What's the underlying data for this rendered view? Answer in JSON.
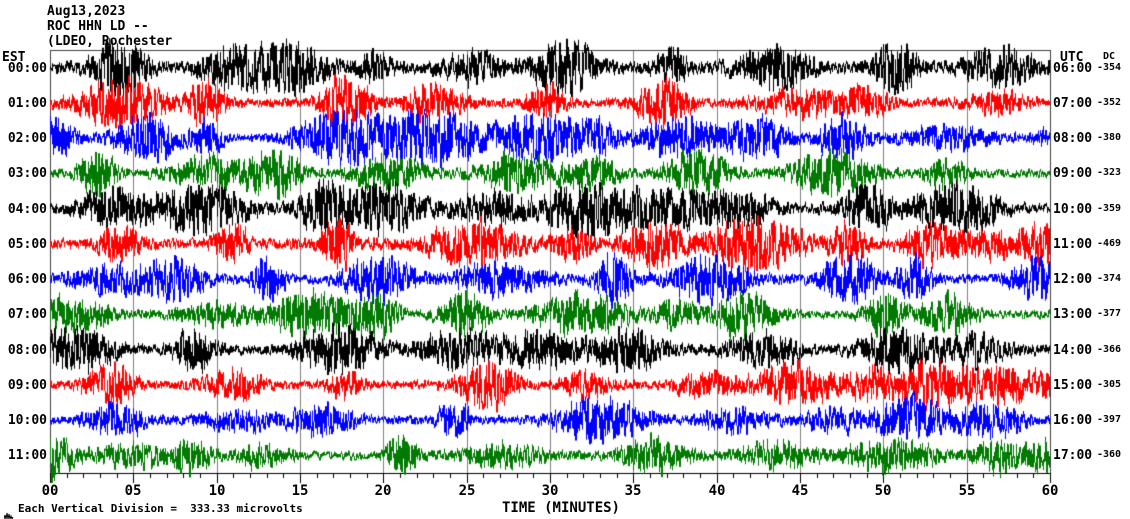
{
  "header": {
    "date": "Aug13,2023",
    "station": "ROC HHN LD --",
    "location": "(LDEO, Rochester"
  },
  "axes": {
    "left_timezone_label": "EST",
    "right_timezone_label": "UTC",
    "dc_column_label": "DC",
    "x_axis_title": "TIME (MINUTES)",
    "x_ticks": [
      "00",
      "05",
      "10",
      "15",
      "20",
      "25",
      "30",
      "35",
      "40",
      "45",
      "50",
      "55",
      "60"
    ]
  },
  "footer": {
    "scale_marker_icon": "microvolt-scale-marker-icon",
    "text": "Each Vertical Division =  333.33 microvolts"
  },
  "colors": {
    "trace_black": "#000000",
    "trace_red": "#ff0000",
    "trace_blue": "#0000ff",
    "trace_green": "#007a00",
    "grid": "#808080",
    "frame": "#404040",
    "axis": "#000000",
    "background": "#ffffff"
  },
  "chart_data": {
    "type": "line",
    "title": "ROC HHN LD -- helicorder record Aug13,2023 (LDEO, Rochester)",
    "xlabel": "TIME (MINUTES)",
    "x_range": [
      0,
      60
    ],
    "x_major_tick_minutes": 5,
    "x_minor_tick_minutes": 1,
    "grid": {
      "on": true,
      "interval_minutes": 5
    },
    "vertical_division_microvolts": "333.33",
    "rows": [
      {
        "est": "00:00",
        "utc": "06:00",
        "dc": -354,
        "color": "#000000",
        "amp": 1.35,
        "seed": 101
      },
      {
        "est": "01:00",
        "utc": "07:00",
        "dc": -352,
        "color": "#ff0000",
        "amp": 1.05,
        "seed": 102
      },
      {
        "est": "02:00",
        "utc": "08:00",
        "dc": -380,
        "color": "#0000ff",
        "amp": 1.0,
        "seed": 103
      },
      {
        "est": "03:00",
        "utc": "09:00",
        "dc": -323,
        "color": "#007a00",
        "amp": 0.95,
        "seed": 104
      },
      {
        "est": "04:00",
        "utc": "10:00",
        "dc": -359,
        "color": "#000000",
        "amp": 1.15,
        "seed": 105
      },
      {
        "est": "05:00",
        "utc": "11:00",
        "dc": -469,
        "color": "#ff0000",
        "amp": 1.25,
        "seed": 106
      },
      {
        "est": "06:00",
        "utc": "12:00",
        "dc": -374,
        "color": "#0000ff",
        "amp": 1.0,
        "seed": 107
      },
      {
        "est": "07:00",
        "utc": "13:00",
        "dc": -377,
        "color": "#007a00",
        "amp": 0.95,
        "seed": 108
      },
      {
        "est": "08:00",
        "utc": "14:00",
        "dc": -366,
        "color": "#000000",
        "amp": 1.1,
        "seed": 109
      },
      {
        "est": "09:00",
        "utc": "15:00",
        "dc": -305,
        "color": "#ff0000",
        "amp": 1.0,
        "seed": 110
      },
      {
        "est": "10:00",
        "utc": "16:00",
        "dc": -397,
        "color": "#0000ff",
        "amp": 0.95,
        "seed": 111
      },
      {
        "est": "11:00",
        "utc": "17:00",
        "dc": -360,
        "color": "#007a00",
        "amp": 1.0,
        "seed": 112
      }
    ]
  }
}
